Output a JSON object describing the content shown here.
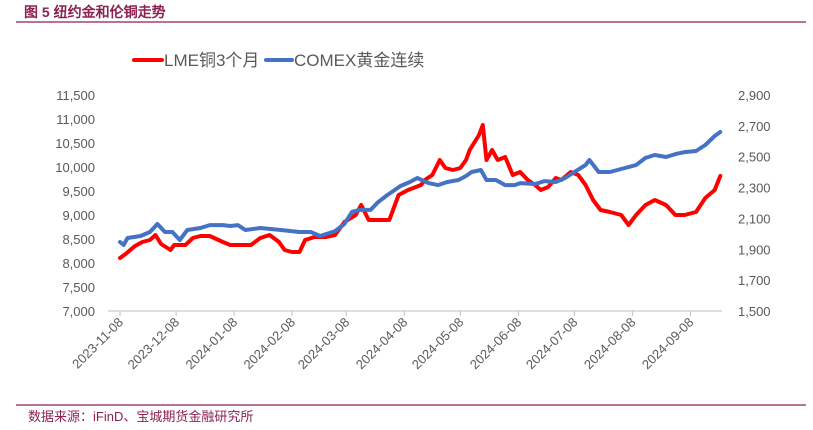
{
  "chart_data": {
    "type": "line",
    "title": "图 5 纽约金和伦铜走势",
    "source": "数据来源：iFinD、宝城期货金融研究所",
    "x_unit": "days since 2023-11-08",
    "x_ticks": [
      "2023-11-08",
      "2023-12-08",
      "2024-01-08",
      "2024-02-08",
      "2024-03-08",
      "2024-04-08",
      "2024-05-08",
      "2024-06-08",
      "2024-07-08",
      "2024-08-08",
      "2024-09-08"
    ],
    "x_tick_days": [
      0,
      30,
      61,
      92,
      121,
      152,
      182,
      213,
      243,
      274,
      305
    ],
    "left_axis": {
      "min": 7000,
      "max": 11500,
      "step": 500,
      "ticks": [
        "7,000",
        "7,500",
        "8,000",
        "8,500",
        "9,000",
        "9,500",
        "10,000",
        "10,500",
        "11,000",
        "11,500"
      ]
    },
    "right_axis": {
      "min": 1500,
      "max": 2900,
      "step": 200,
      "ticks": [
        "1,500",
        "1,700",
        "1,900",
        "2,100",
        "2,300",
        "2,500",
        "2,700",
        "2,900"
      ]
    },
    "legend_position": "top-center",
    "series": [
      {
        "name": "LME铜3个月",
        "axis": "left",
        "color": "#ff0000",
        "x": [
          0,
          3,
          8,
          12,
          16,
          19,
          22,
          27,
          29,
          35,
          39,
          43,
          48,
          55,
          59,
          64,
          70,
          75,
          80,
          85,
          88,
          92,
          96,
          99,
          104,
          110,
          115,
          120,
          126,
          129,
          133,
          138,
          144,
          149,
          154,
          161,
          163,
          167,
          171,
          174,
          178,
          182,
          185,
          187,
          192,
          194,
          196,
          199,
          202,
          206,
          210,
          214,
          218,
          222,
          225,
          229,
          233,
          236,
          241,
          245,
          249,
          253,
          257,
          262,
          268,
          272,
          276,
          281,
          286,
          292,
          297,
          302,
          308,
          313,
          318,
          321
        ],
        "y": [
          8104,
          8188,
          8354,
          8438,
          8479,
          8583,
          8396,
          8271,
          8375,
          8375,
          8521,
          8563,
          8563,
          8438,
          8375,
          8375,
          8375,
          8521,
          8583,
          8438,
          8271,
          8229,
          8229,
          8479,
          8542,
          8542,
          8583,
          8854,
          9000,
          9208,
          8896,
          8896,
          8896,
          9417,
          9521,
          9625,
          9729,
          9833,
          10146,
          9979,
          9938,
          9979,
          10146,
          10354,
          10667,
          10875,
          10146,
          10354,
          10146,
          10208,
          9833,
          9896,
          9729,
          9625,
          9521,
          9583,
          9771,
          9729,
          9896,
          9833,
          9625,
          9313,
          9104,
          9063,
          9000,
          8792,
          9000,
          9208,
          9313,
          9208,
          9000,
          9000,
          9063,
          9354,
          9521,
          9813
        ]
      },
      {
        "name": "COMEX黄金连续",
        "axis": "right",
        "color": "#4472c4",
        "x": [
          0,
          2,
          4,
          11,
          16,
          20,
          24,
          28,
          32,
          36,
          43,
          48,
          55,
          59,
          63,
          67,
          75,
          86,
          96,
          102,
          107,
          115,
          120,
          124,
          128,
          134,
          138,
          143,
          150,
          155,
          159,
          165,
          170,
          175,
          181,
          185,
          188,
          193,
          196,
          201,
          206,
          211,
          214,
          222,
          227,
          233,
          238,
          243,
          249,
          251,
          256,
          262,
          270,
          276,
          281,
          286,
          292,
          297,
          302,
          308,
          313,
          318,
          321
        ],
        "y": [
          1947,
          1928,
          1973,
          1986,
          2012,
          2064,
          2012,
          2012,
          1960,
          2025,
          2038,
          2057,
          2057,
          2051,
          2057,
          2025,
          2038,
          2025,
          2012,
          2012,
          1986,
          2018,
          2064,
          2142,
          2155,
          2155,
          2206,
          2252,
          2310,
          2336,
          2362,
          2329,
          2316,
          2336,
          2349,
          2375,
          2401,
          2414,
          2349,
          2349,
          2316,
          2316,
          2329,
          2323,
          2342,
          2336,
          2362,
          2401,
          2446,
          2479,
          2401,
          2401,
          2427,
          2446,
          2492,
          2511,
          2498,
          2517,
          2530,
          2537,
          2576,
          2634,
          2660
        ]
      }
    ]
  }
}
